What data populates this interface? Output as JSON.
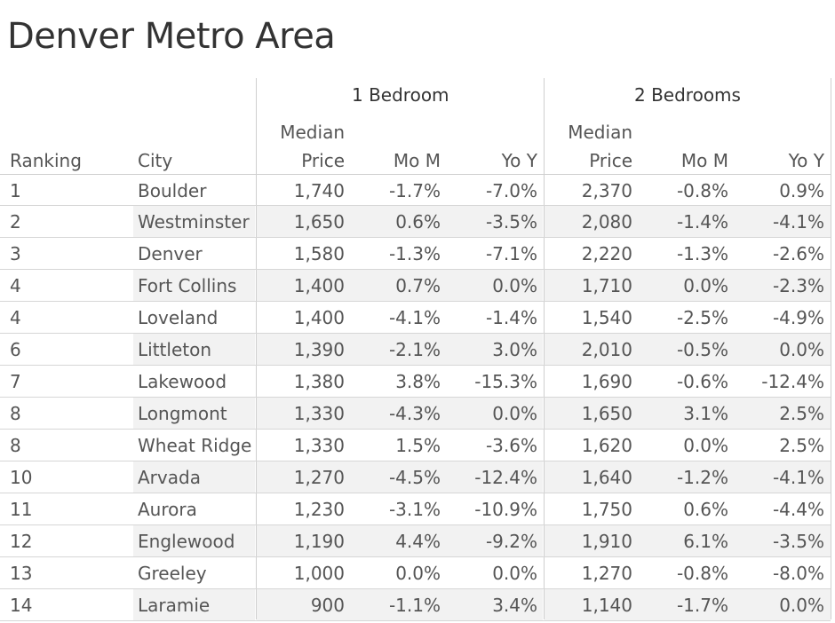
{
  "title": "Denver Metro Area",
  "chart_data": {
    "type": "table",
    "title": "Denver Metro Area",
    "groups": [
      "1 Bedroom",
      "2 Bedrooms"
    ],
    "columns": {
      "ranking": "Ranking",
      "city": "City",
      "median_line1": "Median",
      "median_line2": "Price",
      "mom": "Mo M",
      "yoy": "Yo Y"
    },
    "rows": [
      {
        "rank": "1",
        "city": "Boulder",
        "b1_price": "1,740",
        "b1_mom": "-1.7%",
        "b1_yoy": "-7.0%",
        "b2_price": "2,370",
        "b2_mom": "-0.8%",
        "b2_yoy": "0.9%"
      },
      {
        "rank": "2",
        "city": "Westminster",
        "b1_price": "1,650",
        "b1_mom": "0.6%",
        "b1_yoy": "-3.5%",
        "b2_price": "2,080",
        "b2_mom": "-1.4%",
        "b2_yoy": "-4.1%"
      },
      {
        "rank": "3",
        "city": "Denver",
        "b1_price": "1,580",
        "b1_mom": "-1.3%",
        "b1_yoy": "-7.1%",
        "b2_price": "2,220",
        "b2_mom": "-1.3%",
        "b2_yoy": "-2.6%"
      },
      {
        "rank": "4",
        "city": "Fort Collins",
        "b1_price": "1,400",
        "b1_mom": "0.7%",
        "b1_yoy": "0.0%",
        "b2_price": "1,710",
        "b2_mom": "0.0%",
        "b2_yoy": "-2.3%"
      },
      {
        "rank": "4",
        "city": "Loveland",
        "b1_price": "1,400",
        "b1_mom": "-4.1%",
        "b1_yoy": "-1.4%",
        "b2_price": "1,540",
        "b2_mom": "-2.5%",
        "b2_yoy": "-4.9%"
      },
      {
        "rank": "6",
        "city": "Littleton",
        "b1_price": "1,390",
        "b1_mom": "-2.1%",
        "b1_yoy": "3.0%",
        "b2_price": "2,010",
        "b2_mom": "-0.5%",
        "b2_yoy": "0.0%"
      },
      {
        "rank": "7",
        "city": "Lakewood",
        "b1_price": "1,380",
        "b1_mom": "3.8%",
        "b1_yoy": "-15.3%",
        "b2_price": "1,690",
        "b2_mom": "-0.6%",
        "b2_yoy": "-12.4%"
      },
      {
        "rank": "8",
        "city": "Longmont",
        "b1_price": "1,330",
        "b1_mom": "-4.3%",
        "b1_yoy": "0.0%",
        "b2_price": "1,650",
        "b2_mom": "3.1%",
        "b2_yoy": "2.5%"
      },
      {
        "rank": "8",
        "city": "Wheat Ridge",
        "b1_price": "1,330",
        "b1_mom": "1.5%",
        "b1_yoy": "-3.6%",
        "b2_price": "1,620",
        "b2_mom": "0.0%",
        "b2_yoy": "2.5%"
      },
      {
        "rank": "10",
        "city": "Arvada",
        "b1_price": "1,270",
        "b1_mom": "-4.5%",
        "b1_yoy": "-12.4%",
        "b2_price": "1,640",
        "b2_mom": "-1.2%",
        "b2_yoy": "-4.1%"
      },
      {
        "rank": "11",
        "city": "Aurora",
        "b1_price": "1,230",
        "b1_mom": "-3.1%",
        "b1_yoy": "-10.9%",
        "b2_price": "1,750",
        "b2_mom": "0.6%",
        "b2_yoy": "-4.4%"
      },
      {
        "rank": "12",
        "city": "Englewood",
        "b1_price": "1,190",
        "b1_mom": "4.4%",
        "b1_yoy": "-9.2%",
        "b2_price": "1,910",
        "b2_mom": "6.1%",
        "b2_yoy": "-3.5%"
      },
      {
        "rank": "13",
        "city": "Greeley",
        "b1_price": "1,000",
        "b1_mom": "0.0%",
        "b1_yoy": "0.0%",
        "b2_price": "1,270",
        "b2_mom": "-0.8%",
        "b2_yoy": "-8.0%"
      },
      {
        "rank": "14",
        "city": "Laramie",
        "b1_price": "900",
        "b1_mom": "-1.1%",
        "b1_yoy": "3.4%",
        "b2_price": "1,140",
        "b2_mom": "-1.7%",
        "b2_yoy": "0.0%"
      }
    ]
  },
  "colors": {
    "text": "#555555",
    "header_text": "#333333",
    "grid": "#d6d6d6",
    "band_shade": "#f2f2f2"
  }
}
